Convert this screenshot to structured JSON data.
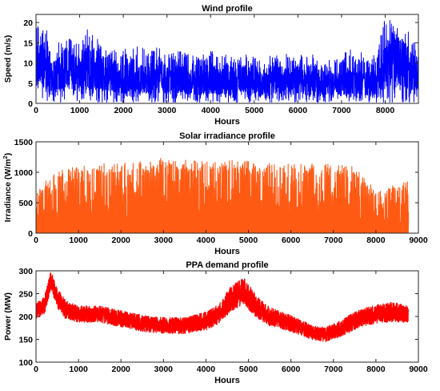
{
  "chart_data": [
    {
      "type": "line",
      "title": "Wind profile",
      "xlabel": "Hours",
      "ylabel": "Speed (m/s)",
      "xlim": [
        0,
        8760
      ],
      "ylim": [
        0,
        22
      ],
      "xticks": [
        "0",
        "1000",
        "2000",
        "3000",
        "4000",
        "5000",
        "6000",
        "7000",
        "8000"
      ],
      "yticks": [
        "0",
        "5",
        "10",
        "15",
        "20"
      ],
      "color": "#0000ff",
      "series": [
        {
          "x": [
            0,
            200,
            400,
            600,
            800,
            1000,
            1200,
            1400,
            1600,
            1800,
            2000,
            2200,
            2400,
            2600,
            2800,
            3000,
            3200,
            3400,
            3600,
            3800,
            4000,
            4200,
            4400,
            4600,
            4800,
            5000,
            5200,
            5400,
            5600,
            5800,
            6000,
            6200,
            6400,
            6600,
            6800,
            7000,
            7200,
            7400,
            7600,
            7800,
            8000,
            8200,
            8400,
            8600,
            8760
          ],
          "y": [
            9,
            10,
            7,
            9,
            8,
            7,
            9,
            8,
            7,
            7,
            6,
            7,
            6,
            6,
            7,
            6,
            6,
            6,
            5,
            6,
            6,
            6,
            5,
            6,
            6,
            6,
            5,
            6,
            6,
            5,
            6,
            5,
            6,
            5,
            5,
            5,
            6,
            5,
            5,
            5,
            9,
            12,
            10,
            8,
            7
          ],
          "max": [
            20,
            19,
            17,
            17,
            17,
            15,
            21,
            17,
            14,
            14,
            15,
            14,
            14,
            13,
            14,
            13,
            13,
            13,
            12,
            12,
            13,
            13,
            12,
            11,
            12,
            12,
            11,
            12,
            13,
            12,
            12,
            12,
            12,
            11,
            11,
            12,
            14,
            13,
            12,
            12,
            22,
            20,
            17,
            19,
            14
          ]
        }
      ]
    },
    {
      "type": "line",
      "title": "Solar irradiance profile",
      "xlabel": "Hours",
      "ylabel": "Irradiance (W/m",
      "ylabel_sup": "2",
      "ylabel_end": ")",
      "xlim": [
        0,
        9000
      ],
      "ylim": [
        0,
        1500
      ],
      "xticks": [
        "0",
        "1000",
        "2000",
        "3000",
        "4000",
        "5000",
        "6000",
        "7000",
        "8000",
        "9000"
      ],
      "yticks": [
        "0",
        "500",
        "1000",
        "1500"
      ],
      "color": "#ff5a14",
      "series": [
        {
          "x": [
            0,
            500,
            1000,
            1500,
            2000,
            2500,
            3000,
            3500,
            4000,
            4500,
            5000,
            5500,
            6000,
            6500,
            7000,
            7500,
            8000,
            8500,
            8760
          ],
          "peak": [
            700,
            1050,
            1100,
            1150,
            1150,
            1180,
            1250,
            1200,
            1200,
            1200,
            1200,
            1150,
            1150,
            1150,
            1150,
            1100,
            700,
            800,
            850
          ]
        }
      ]
    },
    {
      "type": "line",
      "title": "PPA demand profile",
      "xlabel": "Hours",
      "ylabel": "Power (MW)",
      "xlim": [
        0,
        9000
      ],
      "ylim": [
        100,
        300
      ],
      "xticks": [
        "0",
        "1000",
        "2000",
        "3000",
        "4000",
        "5000",
        "6000",
        "7000",
        "8000",
        "9000"
      ],
      "yticks": [
        "100",
        "150",
        "200",
        "250",
        "300"
      ],
      "color": "#ff0000",
      "series": [
        {
          "x": [
            0,
            200,
            350,
            500,
            700,
            1000,
            1500,
            2000,
            2500,
            3000,
            3500,
            4000,
            4300,
            4600,
            4900,
            5200,
            5500,
            6000,
            6500,
            6800,
            7200,
            7600,
            8000,
            8400,
            8760
          ],
          "y": [
            210,
            225,
            280,
            240,
            215,
            205,
            205,
            195,
            185,
            180,
            180,
            190,
            205,
            240,
            255,
            220,
            200,
            185,
            165,
            160,
            175,
            195,
            205,
            210,
            205
          ],
          "spread": [
            18,
            20,
            20,
            22,
            20,
            18,
            18,
            18,
            18,
            18,
            18,
            20,
            22,
            28,
            30,
            24,
            20,
            18,
            16,
            16,
            18,
            20,
            20,
            22,
            18
          ]
        }
      ]
    }
  ]
}
